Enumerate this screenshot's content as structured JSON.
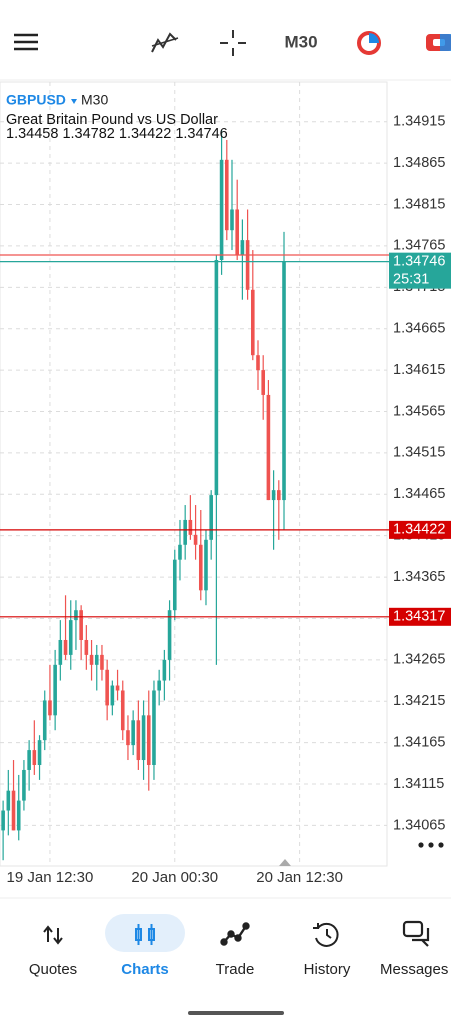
{
  "toolbar": {
    "timeframe": "M30"
  },
  "chart_data": {
    "type": "candlestick",
    "symbol": "GBPUSD",
    "timeframe": "M30",
    "title": "Great Britain Pound vs US Dollar",
    "info": "1.34458 1.34782 1.34422 1.34746",
    "open": [
      1.34059,
      1.34083,
      1.34107,
      1.34059,
      1.34095,
      1.34132,
      1.34156,
      1.34138,
      1.34168,
      1.34216,
      1.34198,
      1.34259,
      1.34289,
      1.34271,
      1.34313,
      1.34325,
      1.34289,
      1.34271,
      1.34259,
      1.34271,
      1.34253,
      1.3421,
      1.34234,
      1.34228,
      1.3418,
      1.34162,
      1.34192,
      1.34144,
      1.34198,
      1.34138,
      1.34228,
      1.3424,
      1.34265,
      1.34325,
      1.34386,
      1.34404,
      1.34434,
      1.34416,
      1.34404,
      1.34349,
      1.3441,
      1.34464,
      1.34748,
      1.34869,
      1.34784,
      1.34809,
      1.34754,
      1.34772,
      1.34712,
      1.34633,
      1.34615,
      1.34585,
      1.34458,
      1.3447,
      1.34458
    ],
    "high": [
      1.34095,
      1.34132,
      1.34144,
      1.34126,
      1.34144,
      1.34168,
      1.34192,
      1.34174,
      1.34228,
      1.34259,
      1.34277,
      1.34313,
      1.34343,
      1.34337,
      1.34337,
      1.34331,
      1.34307,
      1.34289,
      1.34283,
      1.34283,
      1.34265,
      1.3424,
      1.34253,
      1.3424,
      1.34198,
      1.34204,
      1.34216,
      1.34216,
      1.34228,
      1.3424,
      1.34253,
      1.34277,
      1.34337,
      1.34398,
      1.34434,
      1.34452,
      1.34464,
      1.34452,
      1.34446,
      1.34422,
      1.3447,
      1.34754,
      1.34905,
      1.34893,
      1.34869,
      1.34845,
      1.34797,
      1.34809,
      1.3476,
      1.34651,
      1.34633,
      1.34603,
      1.34494,
      1.34482,
      1.34782
    ],
    "low": [
      1.34023,
      1.34053,
      1.34059,
      1.34047,
      1.34083,
      1.34107,
      1.34126,
      1.3412,
      1.34156,
      1.34192,
      1.3418,
      1.3424,
      1.34265,
      1.34253,
      1.34277,
      1.34265,
      1.34253,
      1.3424,
      1.34228,
      1.3424,
      1.34192,
      1.34198,
      1.34216,
      1.34168,
      1.34144,
      1.3415,
      1.34132,
      1.3412,
      1.34107,
      1.3412,
      1.3421,
      1.34216,
      1.3424,
      1.34313,
      1.34361,
      1.34386,
      1.3441,
      1.34386,
      1.34337,
      1.34331,
      1.34386,
      1.34259,
      1.3473,
      1.34772,
      1.3476,
      1.34748,
      1.347,
      1.347,
      1.34627,
      1.34591,
      1.34555,
      1.34458,
      1.34398,
      1.3441,
      1.34422
    ],
    "close": [
      1.34083,
      1.34107,
      1.34059,
      1.34095,
      1.34132,
      1.34156,
      1.34138,
      1.34168,
      1.34216,
      1.34198,
      1.34259,
      1.34289,
      1.34271,
      1.34313,
      1.34325,
      1.34289,
      1.34271,
      1.34259,
      1.34271,
      1.34253,
      1.3421,
      1.34234,
      1.34228,
      1.3418,
      1.34162,
      1.34192,
      1.34144,
      1.34198,
      1.34138,
      1.34228,
      1.3424,
      1.34265,
      1.34325,
      1.34386,
      1.34404,
      1.34434,
      1.34416,
      1.34404,
      1.34349,
      1.3441,
      1.34464,
      1.34748,
      1.34869,
      1.34784,
      1.34809,
      1.34754,
      1.34772,
      1.34712,
      1.34633,
      1.34615,
      1.34585,
      1.34458,
      1.3447,
      1.34458,
      1.34746
    ],
    "up_color": "#26a69a",
    "down_color": "#ef5350",
    "xlim": [
      -0.6,
      73.8
    ],
    "xticks": [
      {
        "value": 9,
        "label": "19 Jan 12:30"
      },
      {
        "value": 33,
        "label": "20 Jan 00:30"
      },
      {
        "value": 57,
        "label": "20 Jan 12:30"
      }
    ],
    "ylim": [
      1.34016,
      1.34963
    ],
    "yticks": [
      1.34915,
      1.34865,
      1.34815,
      1.34765,
      1.34715,
      1.34665,
      1.34615,
      1.34565,
      1.34515,
      1.34465,
      1.34415,
      1.34365,
      1.34315,
      1.34265,
      1.34215,
      1.34165,
      1.34115,
      1.34065
    ],
    "grid": true,
    "price_lines": [
      {
        "value": 1.34754,
        "color": "#ef5350",
        "show_label": false
      },
      {
        "value": 1.34746,
        "color": "#26a69a",
        "timer": "25:31"
      },
      {
        "value": 1.34422,
        "color": "#d50000"
      },
      {
        "value": 1.34317,
        "color": "#d50000"
      }
    ]
  },
  "nav": {
    "items": [
      {
        "label": "Quotes"
      },
      {
        "label": "Charts"
      },
      {
        "label": "Trade"
      },
      {
        "label": "History"
      },
      {
        "label": "Messages"
      }
    ],
    "active": 1
  }
}
